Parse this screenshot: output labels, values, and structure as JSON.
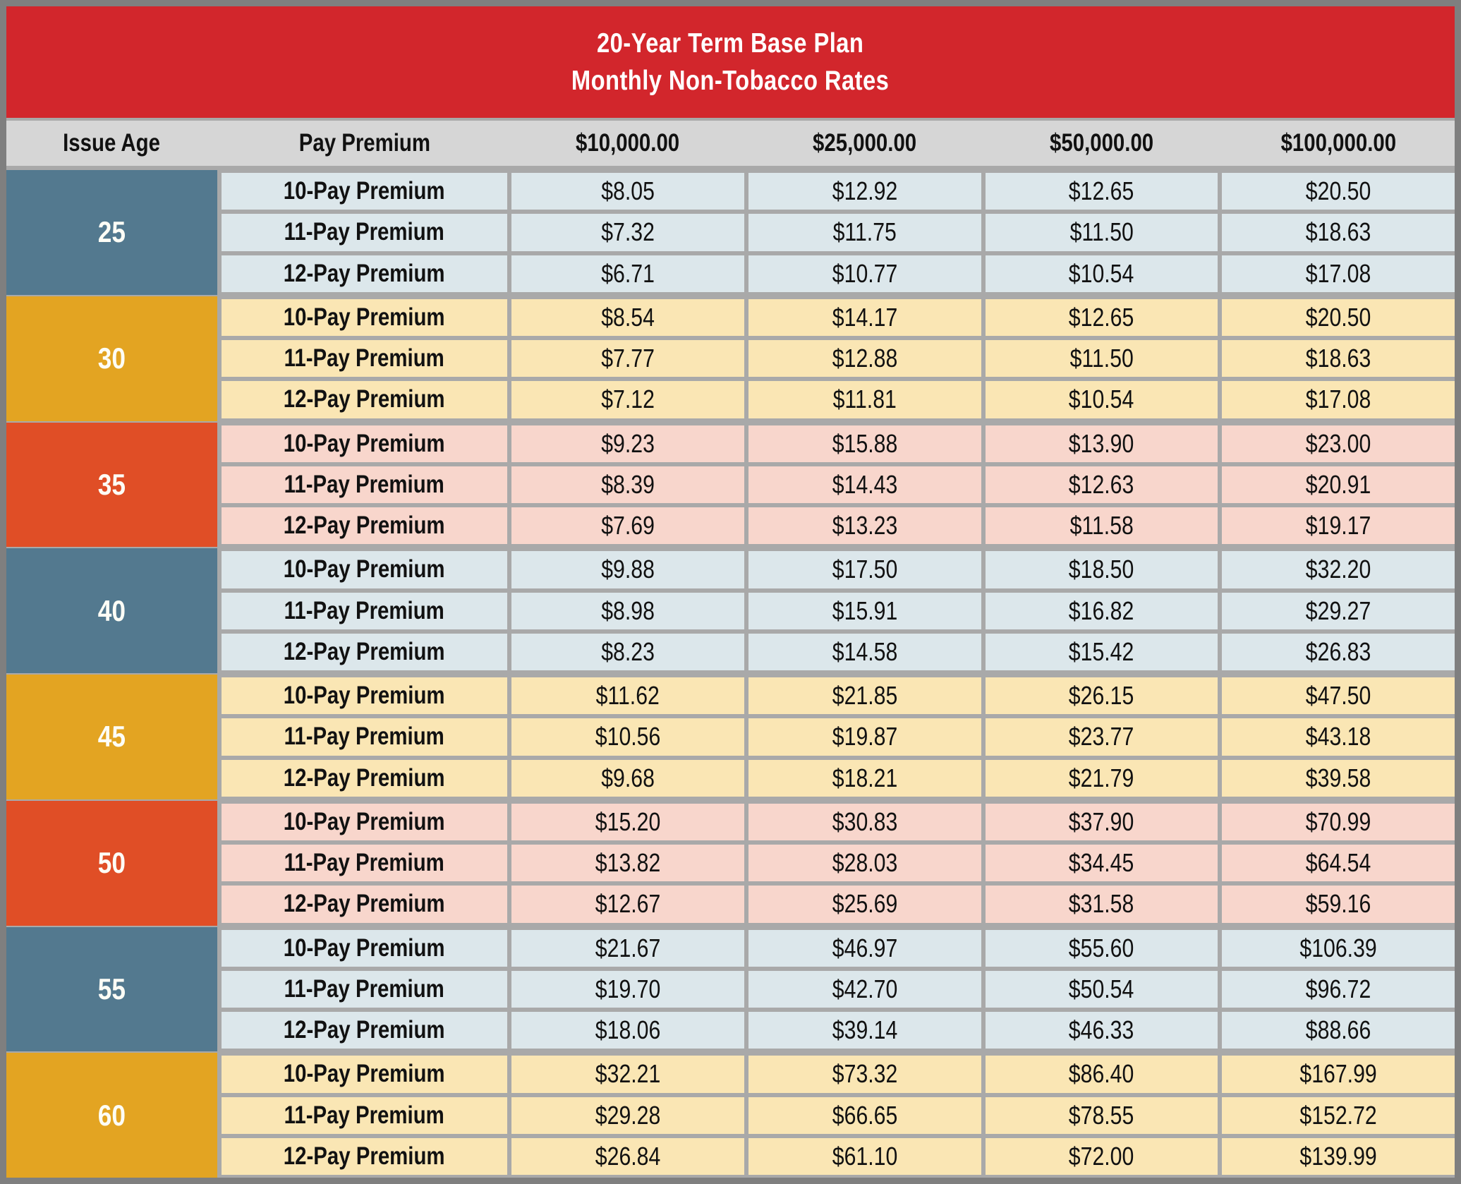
{
  "title": {
    "line1": "20-Year Term Base Plan",
    "line2": "Monthly Non-Tobacco Rates"
  },
  "columns": [
    "Issue Age",
    "Pay Premium",
    "$10,000.00",
    "$25,000.00",
    "$50,000.00",
    "$100,000.00"
  ],
  "colors": {
    "banner_red": "#d2262c",
    "header_gray": "#d6d6d6",
    "grid_gray": "#a9a9a9",
    "outer_border_gray": "#7f7f7f",
    "age_tints": {
      "blue": "#53798f",
      "amber": "#e3a422",
      "orange": "#e04e26"
    },
    "row_tints": {
      "blue": "#dce7eb",
      "amber": "#fae6b4",
      "orange": "#f8d6cc"
    }
  },
  "groups": [
    {
      "age": "25",
      "tint": "blue",
      "rows": [
        {
          "label": "10-Pay Premium",
          "values": [
            "$8.05",
            "$12.92",
            "$12.65",
            "$20.50"
          ]
        },
        {
          "label": "11-Pay Premium",
          "values": [
            "$7.32",
            "$11.75",
            "$11.50",
            "$18.63"
          ]
        },
        {
          "label": "12-Pay Premium",
          "values": [
            "$6.71",
            "$10.77",
            "$10.54",
            "$17.08"
          ]
        }
      ]
    },
    {
      "age": "30",
      "tint": "amber",
      "rows": [
        {
          "label": "10-Pay Premium",
          "values": [
            "$8.54",
            "$14.17",
            "$12.65",
            "$20.50"
          ]
        },
        {
          "label": "11-Pay Premium",
          "values": [
            "$7.77",
            "$12.88",
            "$11.50",
            "$18.63"
          ]
        },
        {
          "label": "12-Pay Premium",
          "values": [
            "$7.12",
            "$11.81",
            "$10.54",
            "$17.08"
          ]
        }
      ]
    },
    {
      "age": "35",
      "tint": "orange",
      "rows": [
        {
          "label": "10-Pay Premium",
          "values": [
            "$9.23",
            "$15.88",
            "$13.90",
            "$23.00"
          ]
        },
        {
          "label": "11-Pay Premium",
          "values": [
            "$8.39",
            "$14.43",
            "$12.63",
            "$20.91"
          ]
        },
        {
          "label": "12-Pay Premium",
          "values": [
            "$7.69",
            "$13.23",
            "$11.58",
            "$19.17"
          ]
        }
      ]
    },
    {
      "age": "40",
      "tint": "blue",
      "rows": [
        {
          "label": "10-Pay Premium",
          "values": [
            "$9.88",
            "$17.50",
            "$18.50",
            "$32.20"
          ]
        },
        {
          "label": "11-Pay Premium",
          "values": [
            "$8.98",
            "$15.91",
            "$16.82",
            "$29.27"
          ]
        },
        {
          "label": "12-Pay Premium",
          "values": [
            "$8.23",
            "$14.58",
            "$15.42",
            "$26.83"
          ]
        }
      ]
    },
    {
      "age": "45",
      "tint": "amber",
      "rows": [
        {
          "label": "10-Pay Premium",
          "values": [
            "$11.62",
            "$21.85",
            "$26.15",
            "$47.50"
          ]
        },
        {
          "label": "11-Pay Premium",
          "values": [
            "$10.56",
            "$19.87",
            "$23.77",
            "$43.18"
          ]
        },
        {
          "label": "12-Pay Premium",
          "values": [
            "$9.68",
            "$18.21",
            "$21.79",
            "$39.58"
          ]
        }
      ]
    },
    {
      "age": "50",
      "tint": "orange",
      "rows": [
        {
          "label": "10-Pay Premium",
          "values": [
            "$15.20",
            "$30.83",
            "$37.90",
            "$70.99"
          ]
        },
        {
          "label": "11-Pay Premium",
          "values": [
            "$13.82",
            "$28.03",
            "$34.45",
            "$64.54"
          ]
        },
        {
          "label": "12-Pay Premium",
          "values": [
            "$12.67",
            "$25.69",
            "$31.58",
            "$59.16"
          ]
        }
      ]
    },
    {
      "age": "55",
      "tint": "blue",
      "rows": [
        {
          "label": "10-Pay Premium",
          "values": [
            "$21.67",
            "$46.97",
            "$55.60",
            "$106.39"
          ]
        },
        {
          "label": "11-Pay Premium",
          "values": [
            "$19.70",
            "$42.70",
            "$50.54",
            "$96.72"
          ]
        },
        {
          "label": "12-Pay Premium",
          "values": [
            "$18.06",
            "$39.14",
            "$46.33",
            "$88.66"
          ]
        }
      ]
    },
    {
      "age": "60",
      "tint": "amber",
      "rows": [
        {
          "label": "10-Pay Premium",
          "values": [
            "$32.21",
            "$73.32",
            "$86.40",
            "$167.99"
          ]
        },
        {
          "label": "11-Pay Premium",
          "values": [
            "$29.28",
            "$66.65",
            "$78.55",
            "$152.72"
          ]
        },
        {
          "label": "12-Pay Premium",
          "values": [
            "$26.84",
            "$61.10",
            "$72.00",
            "$139.99"
          ]
        }
      ]
    }
  ]
}
